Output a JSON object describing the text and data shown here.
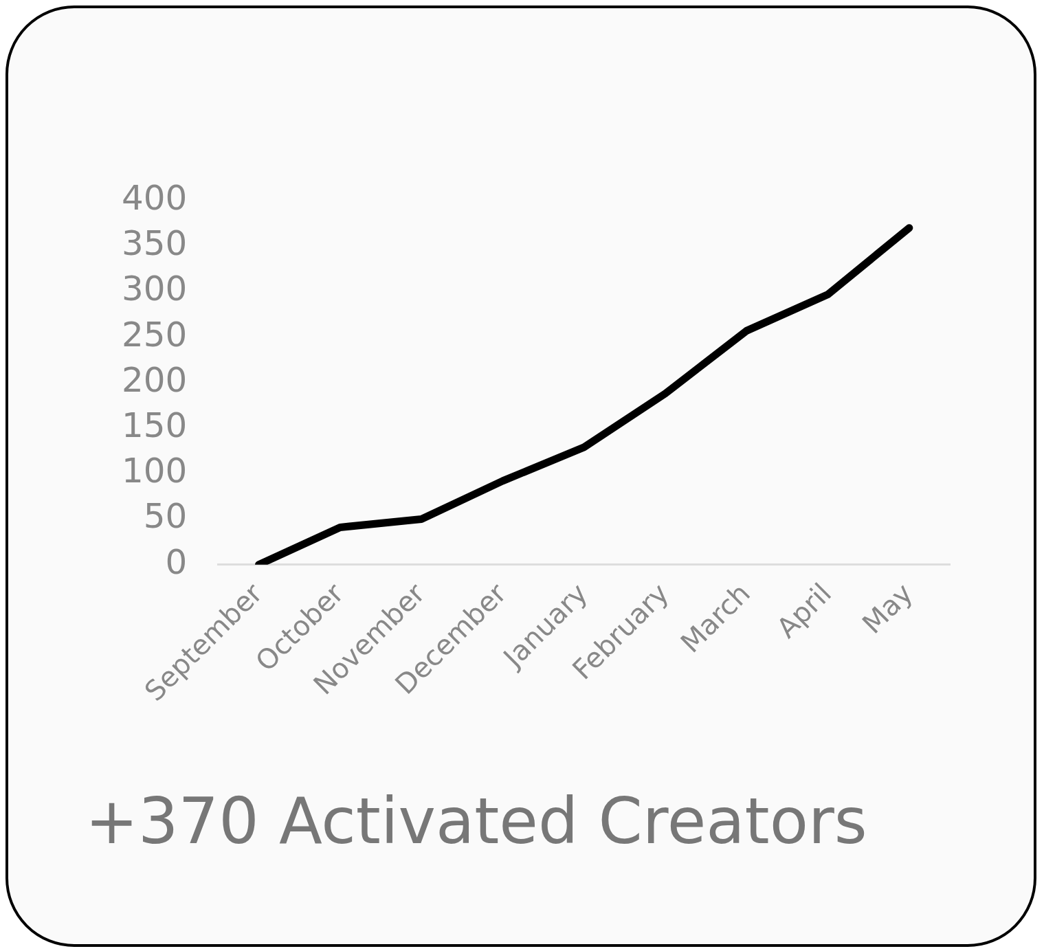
{
  "chart_data": {
    "type": "line",
    "title": "+370 Activated Creators",
    "categories": [
      "September",
      "October",
      "November",
      "December",
      "January",
      "February",
      "March",
      "April",
      "May"
    ],
    "series": [
      {
        "color": "#000000",
        "values": [
          0,
          41,
          50,
          92,
          129,
          188,
          257,
          297,
          370
        ]
      }
    ],
    "ylim": [
      0,
      400
    ],
    "yticks": [
      0,
      50,
      100,
      150,
      200,
      250,
      300,
      350,
      400
    ],
    "grid": false,
    "legend": false,
    "marker": "none",
    "line_style": "solid"
  }
}
